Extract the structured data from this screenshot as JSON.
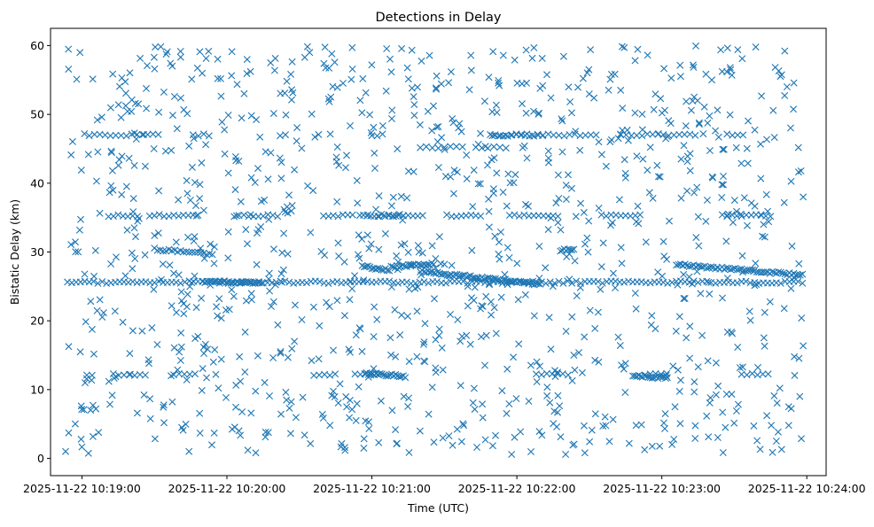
{
  "chart_data": {
    "type": "scatter",
    "title": "Detections in Delay",
    "xlabel": "Time (UTC)",
    "ylabel": "Bistatic Delay (km)",
    "marker": "x",
    "color": "#1f77b4",
    "grid": false,
    "legend": "none",
    "xlim": [
      "2025-11-22 10:18:47",
      "2025-11-22 10:24:08"
    ],
    "ylim": [
      -2.5,
      62.5
    ],
    "xticks": [
      "2025-11-22 10:19:00",
      "2025-11-22 10:20:00",
      "2025-11-22 10:21:00",
      "2025-11-22 10:22:00",
      "2025-11-22 10:23:00",
      "2025-11-22 10:24:00"
    ],
    "yticks": [
      "0",
      "10",
      "20",
      "30",
      "40",
      "50",
      "60"
    ],
    "time_range": [
      "2025-11-22 10:18:53",
      "2025-11-22 10:23:59"
    ],
    "delay_range_km": [
      0.5,
      60
    ],
    "tracks": [
      {
        "start": "2025-11-22 10:18:54",
        "end": "2025-11-22 10:23:59",
        "y": [
          25.6,
          25.6
        ],
        "spacing_s": 1.8
      },
      {
        "start": "2025-11-22 10:19:30",
        "end": "2025-11-22 10:19:55",
        "y": [
          30.4,
          29.6
        ],
        "spacing_s": 1.2
      },
      {
        "start": "2025-11-22 10:20:56",
        "end": "2025-11-22 10:21:08",
        "y": [
          27.9,
          27.4
        ],
        "spacing_s": 0.8
      },
      {
        "start": "2025-11-22 10:21:08",
        "end": "2025-11-22 10:21:26",
        "y": [
          27.8,
          28.3
        ],
        "spacing_s": 0.8
      },
      {
        "start": "2025-11-22 10:21:20",
        "end": "2025-11-22 10:22:10",
        "y": [
          27.2,
          25.3
        ],
        "spacing_s": 0.8
      },
      {
        "start": "2025-11-22 10:23:06",
        "end": "2025-11-22 10:23:59",
        "y": [
          28.2,
          26.6
        ],
        "spacing_s": 0.9
      },
      {
        "start": "2025-11-22 10:19:50",
        "end": "2025-11-22 10:20:15",
        "y": [
          25.7,
          25.5
        ],
        "spacing_s": 0.9
      },
      {
        "start": "2025-11-22 10:20:57",
        "end": "2025-11-22 10:21:14",
        "y": [
          12.4,
          11.9
        ],
        "spacing_s": 0.8
      },
      {
        "start": "2025-11-22 10:22:48",
        "end": "2025-11-22 10:23:02",
        "y": [
          12.0,
          11.7
        ],
        "spacing_s": 0.8
      },
      {
        "start": "2025-11-22 10:22:18",
        "end": "2025-11-22 10:22:24",
        "y": [
          30.3,
          30.3
        ],
        "spacing_s": 0.8
      },
      {
        "start": "2025-11-22 10:21:49",
        "end": "2025-11-22 10:22:12",
        "y": [
          47.0,
          47.0
        ],
        "spacing_s": 1.8
      },
      {
        "start": "2025-11-22 10:20:55",
        "end": "2025-11-22 10:21:14",
        "y": [
          35.3,
          35.3
        ],
        "spacing_s": 1.5
      }
    ],
    "clutter_bands": [
      {
        "y": 47.0,
        "groups": [
          [
            10.0,
            40.0
          ],
          [
            53.0,
            61.0
          ],
          [
            89.0,
            92.0
          ],
          [
            127.0,
            132.0
          ],
          [
            178.0,
            220.0
          ],
          [
            230.0,
            262.0
          ],
          [
            274.0,
            282.0
          ]
        ],
        "spacing_s": 2.2
      },
      {
        "y": 45.2,
        "groups": [
          [
            147.0,
            166.0
          ],
          [
            170.0,
            184.0
          ]
        ],
        "spacing_s": 2.5
      },
      {
        "y": 35.3,
        "groups": [
          [
            18.0,
            30.0
          ],
          [
            35.0,
            55.0
          ],
          [
            70.0,
            88.0
          ],
          [
            107.0,
            120.0
          ],
          [
            130.0,
            148.0
          ],
          [
            158.0,
            172.0
          ],
          [
            184.0,
            205.0
          ],
          [
            222.0,
            238.0
          ],
          [
            272.0,
            292.0
          ]
        ],
        "spacing_s": 2.0
      },
      {
        "y": 12.2,
        "groups": [
          [
            9.0,
            12.0
          ],
          [
            20.0,
            34.0
          ],
          [
            45.0,
            55.0
          ],
          [
            103.0,
            112.0
          ],
          [
            120.0,
            130.0
          ],
          [
            195.0,
            210.0
          ],
          [
            240.0,
            250.0
          ],
          [
            280.0,
            292.0
          ]
        ],
        "spacing_s": 2.2
      }
    ],
    "scatter_points": 1100,
    "scatter_seed": 20251122
  }
}
